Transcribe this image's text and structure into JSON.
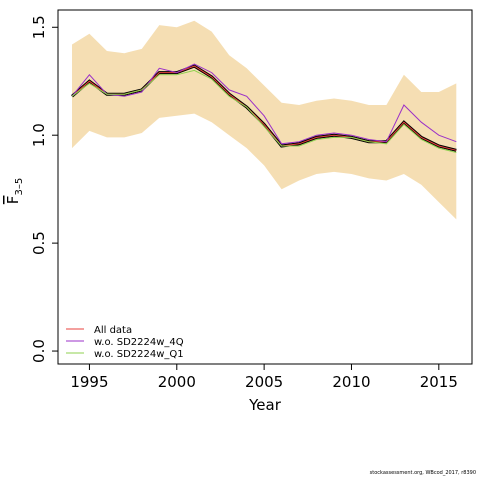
{
  "chart_data": {
    "type": "line",
    "xlabel": "Year",
    "ylabel_main": "F",
    "ylabel_sub": "3–5",
    "xlim": [
      1993.2,
      2016.9
    ],
    "ylim": [
      -0.06,
      1.58
    ],
    "xticks": [
      1995,
      2000,
      2005,
      2010,
      2015
    ],
    "yticks": [
      "0.0",
      "0.5",
      "1.0",
      "1.5"
    ],
    "years": [
      1994,
      1995,
      1996,
      1997,
      1998,
      1999,
      2000,
      2001,
      2002,
      2003,
      2004,
      2005,
      2006,
      2007,
      2008,
      2009,
      2010,
      2011,
      2012,
      2013,
      2014,
      2015,
      2016
    ],
    "band": {
      "lower": [
        0.94,
        1.02,
        0.99,
        0.99,
        1.01,
        1.08,
        1.09,
        1.1,
        1.06,
        1.0,
        0.94,
        0.86,
        0.75,
        0.79,
        0.82,
        0.83,
        0.82,
        0.8,
        0.79,
        0.82,
        0.77,
        0.69,
        0.61
      ],
      "upper": [
        1.42,
        1.47,
        1.39,
        1.38,
        1.4,
        1.51,
        1.5,
        1.53,
        1.48,
        1.37,
        1.31,
        1.23,
        1.15,
        1.14,
        1.16,
        1.17,
        1.16,
        1.14,
        1.14,
        1.28,
        1.2,
        1.2,
        1.24
      ],
      "color": "#f5deb3"
    },
    "estimate": {
      "values": [
        1.18,
        1.25,
        1.19,
        1.19,
        1.21,
        1.29,
        1.29,
        1.32,
        1.27,
        1.19,
        1.13,
        1.05,
        0.95,
        0.96,
        0.99,
        1.0,
        0.99,
        0.97,
        0.97,
        1.06,
        0.99,
        0.95,
        0.93
      ],
      "color": "#000000"
    },
    "series": [
      {
        "name": "All data",
        "color": "#e8423d",
        "values": [
          1.18,
          1.25,
          1.19,
          1.19,
          1.21,
          1.29,
          1.29,
          1.32,
          1.27,
          1.19,
          1.13,
          1.05,
          0.95,
          0.96,
          0.99,
          1.0,
          0.99,
          0.97,
          0.97,
          1.06,
          0.99,
          0.95,
          0.93
        ]
      },
      {
        "name": "w.o. SD2224w_4Q",
        "color": "#9b30c8",
        "values": [
          1.18,
          1.28,
          1.19,
          1.18,
          1.2,
          1.31,
          1.29,
          1.33,
          1.29,
          1.21,
          1.18,
          1.09,
          0.96,
          0.97,
          1.0,
          1.01,
          1.0,
          0.98,
          0.97,
          1.14,
          1.06,
          1.0,
          0.97
        ]
      },
      {
        "name": "w.o. SD2224w_Q1",
        "color": "#8fd14f",
        "values": [
          1.18,
          1.24,
          1.19,
          1.19,
          1.21,
          1.28,
          1.28,
          1.3,
          1.26,
          1.18,
          1.13,
          1.04,
          0.95,
          0.95,
          0.98,
          0.99,
          0.99,
          0.97,
          0.96,
          1.05,
          0.98,
          0.94,
          0.92
        ]
      }
    ],
    "legend_position": "bottom-left",
    "grid": false
  },
  "footer_text": "stockassessment.org, WBcod_2017, r8390"
}
